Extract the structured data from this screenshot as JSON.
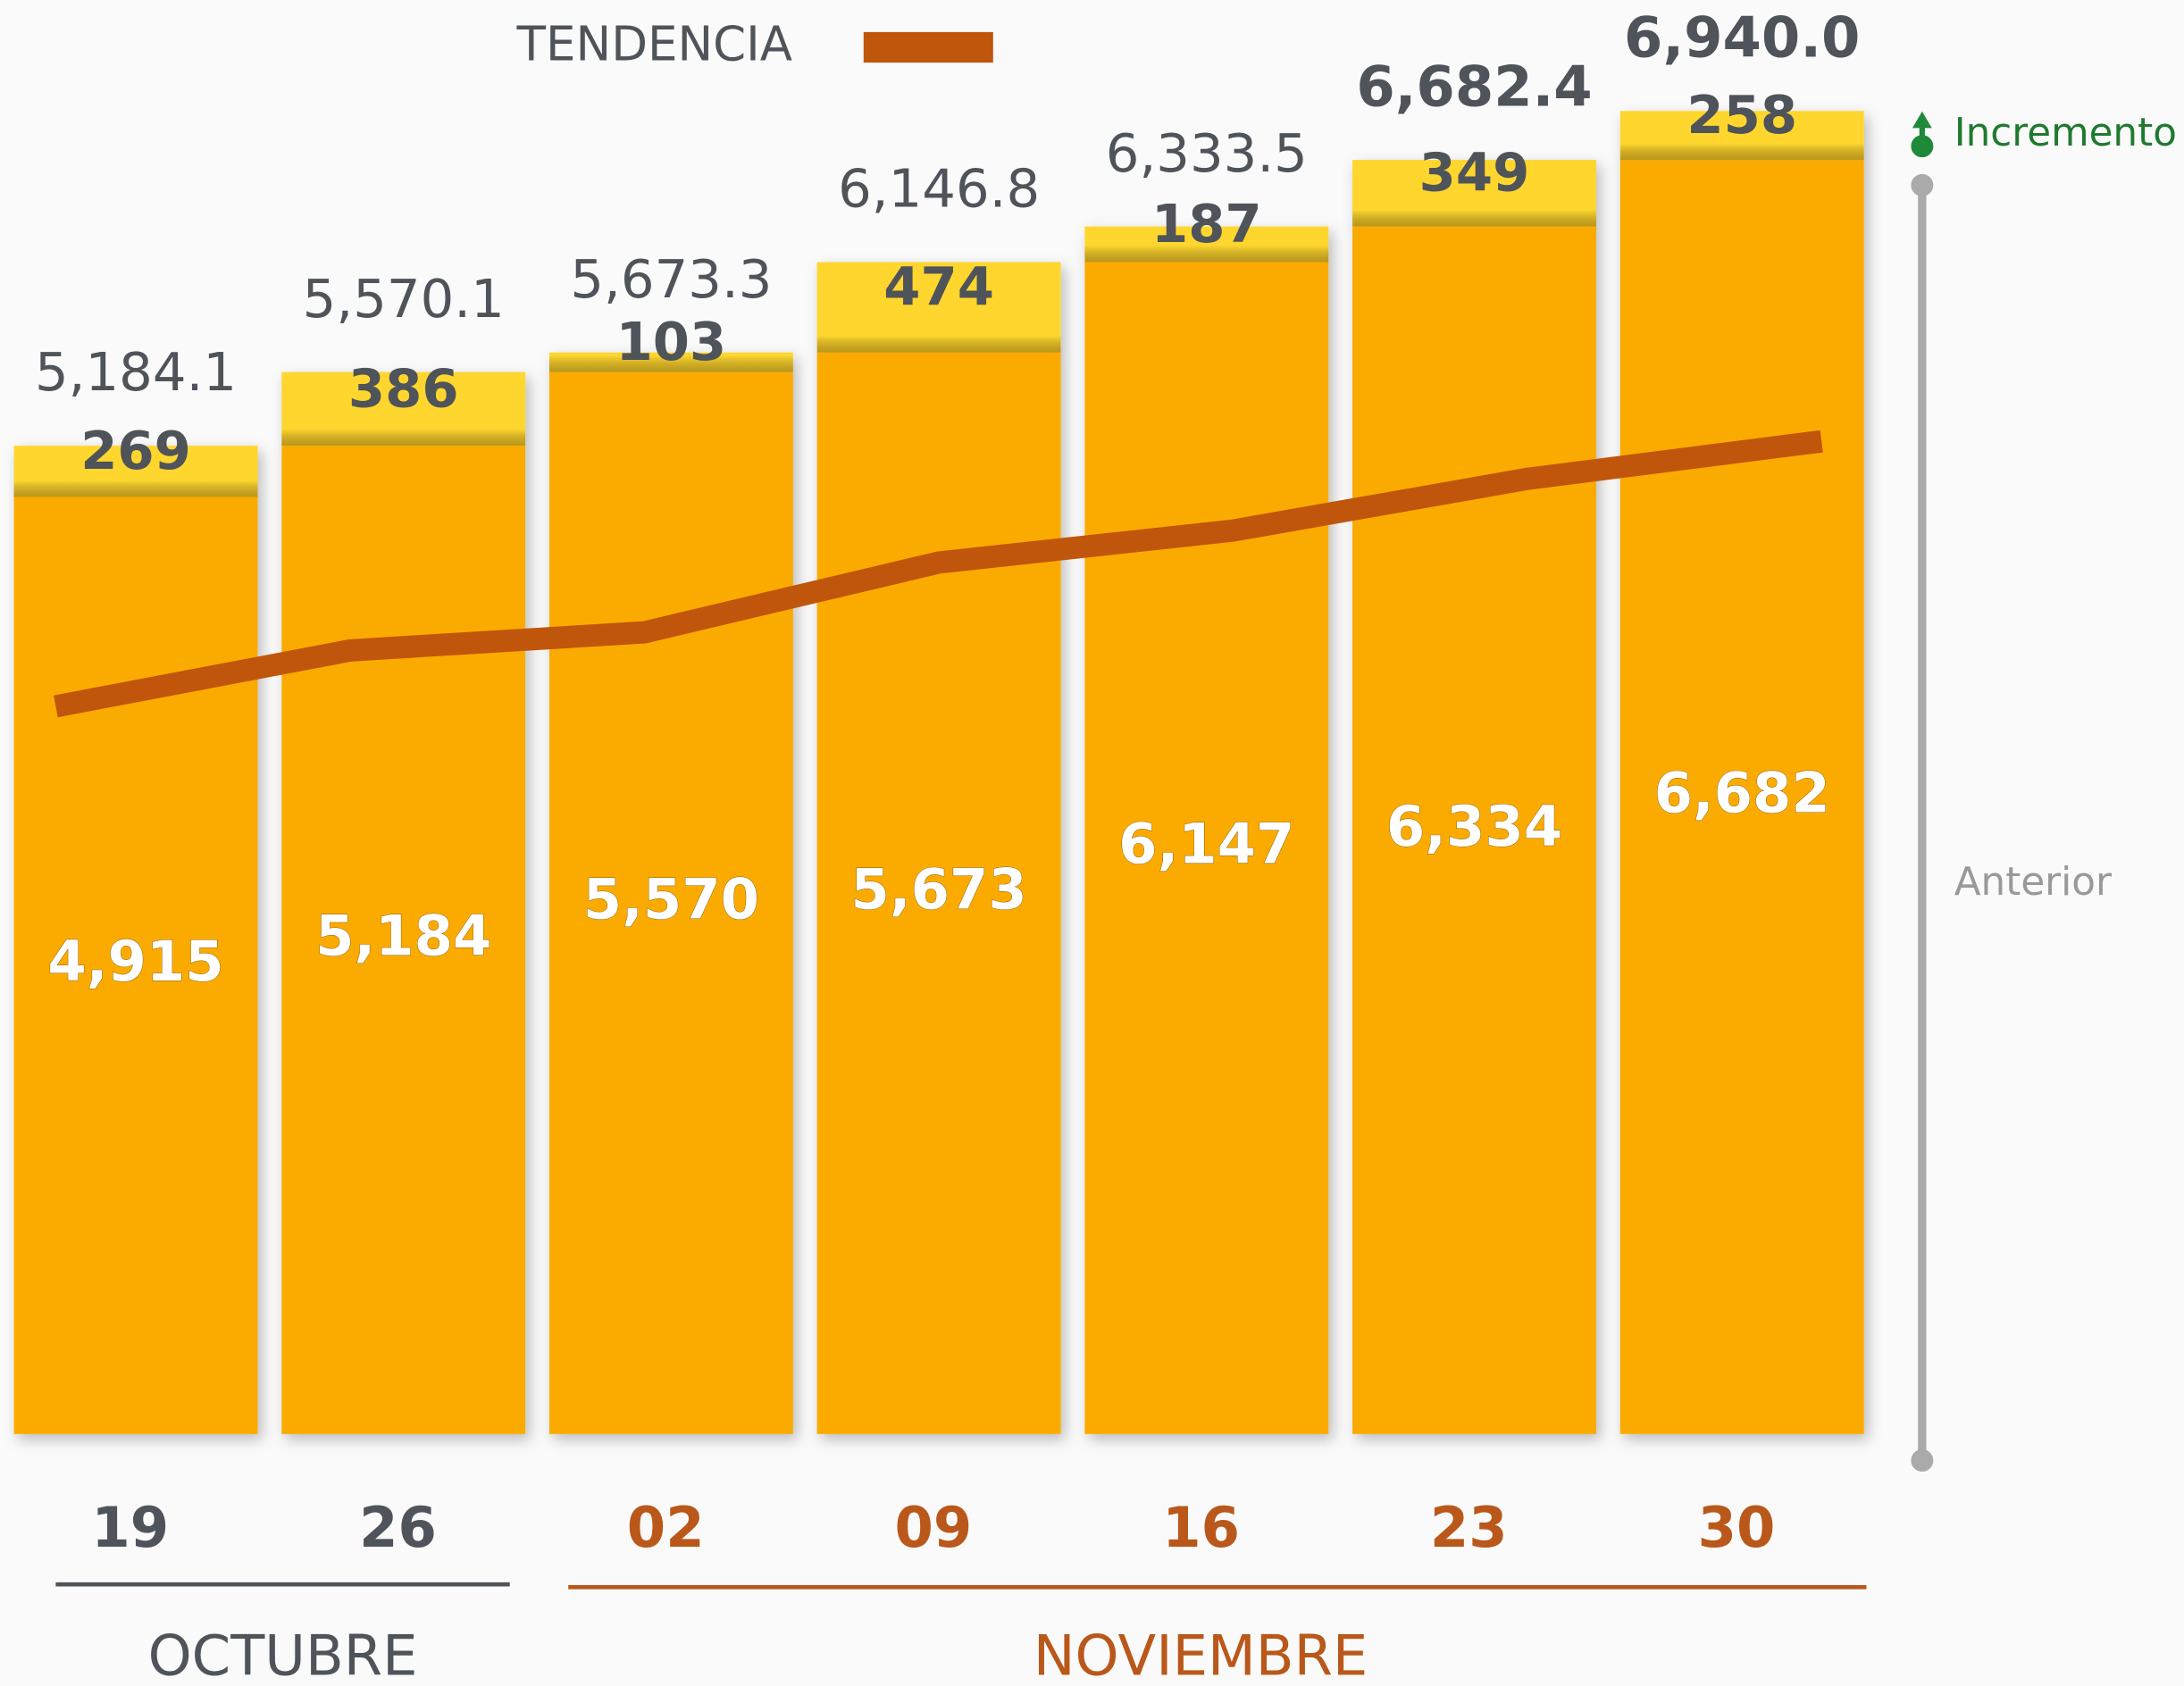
{
  "chart_data": {
    "type": "bar",
    "stacked": true,
    "categories": [
      "19",
      "26",
      "02",
      "09",
      "16",
      "23",
      "30"
    ],
    "series": [
      {
        "name": "Anterior",
        "color": "#fbab00",
        "values": [
          4915,
          5184,
          5570,
          5673,
          6147,
          6334,
          6682
        ],
        "value_labels": [
          "4,915",
          "5,184",
          "5,570",
          "5,673",
          "6,147",
          "6,334",
          "6,682"
        ]
      },
      {
        "name": "Incremento",
        "color": "#fed62e",
        "values": [
          269,
          386,
          103,
          474,
          187,
          349,
          258
        ]
      }
    ],
    "totals": {
      "values": [
        5184.1,
        5570.1,
        5673.3,
        6146.8,
        6333.5,
        6682.4,
        6940.0
      ],
      "value_labels": [
        "5,184.1",
        "5,570.1",
        "5,673.3",
        "6,146.8",
        "6,333.5",
        "6,682.4",
        "6,940.0"
      ]
    },
    "trend": {
      "name": "TENDENCIA",
      "color": "#c0560b",
      "values": [
        3817,
        4110,
        4205,
        4571,
        4739,
        5010,
        5207
      ]
    },
    "groups": [
      {
        "label": "OCTUBRE",
        "color": "#4f535a"
      },
      {
        "label": "NOVIEMBRE",
        "color": "#b9581a"
      }
    ],
    "ylim": [
      0,
      7500
    ]
  }
}
